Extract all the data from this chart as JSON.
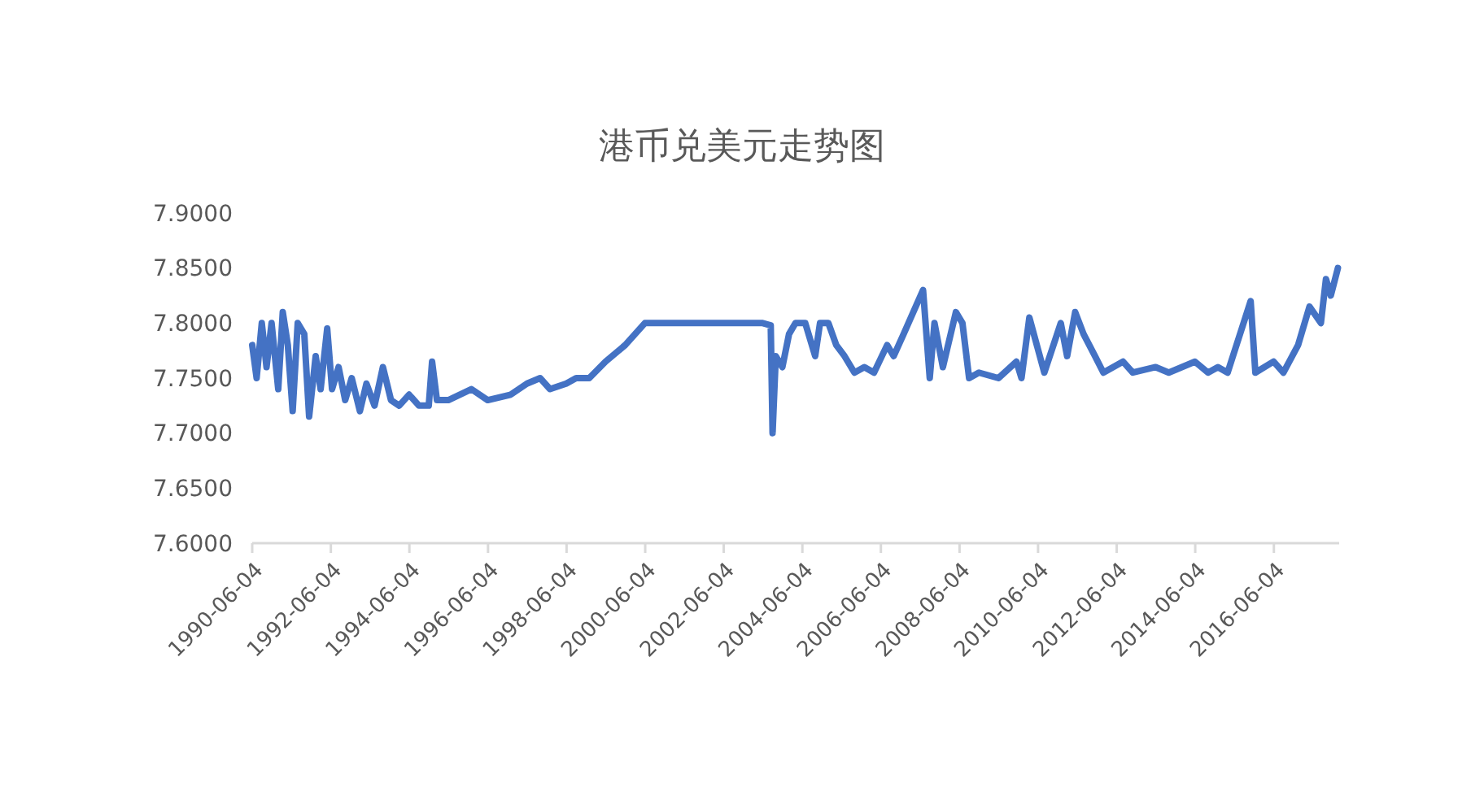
{
  "chart_data": {
    "type": "line",
    "title": "港币兑美元走势图",
    "x": [
      "1990-06-04",
      "1990-07-15",
      "1990-09-01",
      "1990-10-15",
      "1990-12-01",
      "1991-02-01",
      "1991-03-15",
      "1991-05-01",
      "1991-06-15",
      "1991-08-01",
      "1991-10-01",
      "1991-11-15",
      "1992-01-15",
      "1992-03-01",
      "1992-05-01",
      "1992-06-15",
      "1992-08-15",
      "1992-10-15",
      "1992-12-15",
      "1993-03-01",
      "1993-05-01",
      "1993-07-15",
      "1993-10-01",
      "1993-12-15",
      "1994-03-01",
      "1994-06-01",
      "1994-09-01",
      "1994-12-01",
      "1995-01-01",
      "1995-02-15",
      "1995-06-01",
      "1996-01-01",
      "1996-06-01",
      "1997-01-01",
      "1997-06-01",
      "1997-10-01",
      "1998-01-01",
      "1998-06-01",
      "1998-09-01",
      "1999-01-01",
      "1999-06-01",
      "1999-12-01",
      "2000-06-01",
      "2000-10-01",
      "2001-06-01",
      "2002-06-01",
      "2003-06-01",
      "2003-08-15",
      "2003-09-01",
      "2003-10-01",
      "2003-12-01",
      "2004-02-01",
      "2004-04-01",
      "2004-07-01",
      "2004-10-01",
      "2004-11-15",
      "2005-02-01",
      "2005-04-15",
      "2005-07-01",
      "2005-10-01",
      "2006-01-01",
      "2006-04-01",
      "2006-08-01",
      "2006-10-01",
      "2007-01-01",
      "2007-04-01",
      "2007-07-01",
      "2007-09-01",
      "2007-10-15",
      "2008-01-01",
      "2008-05-01",
      "2008-07-01",
      "2008-09-01",
      "2008-12-01",
      "2009-06-01",
      "2009-11-15",
      "2010-01-01",
      "2010-03-15",
      "2010-08-01",
      "2011-01-01",
      "2011-03-01",
      "2011-05-15",
      "2011-08-01",
      "2011-11-15",
      "2012-02-01",
      "2012-08-01",
      "2012-11-01",
      "2013-06-01",
      "2013-10-01",
      "2014-06-01",
      "2014-10-01",
      "2015-01-01",
      "2015-04-01",
      "2015-11-01",
      "2015-12-15",
      "2016-06-01",
      "2016-09-01",
      "2017-01-15",
      "2017-05-01",
      "2017-08-15",
      "2017-10-01",
      "2017-11-15",
      "2018-01-20"
    ],
    "values": [
      7.78,
      7.75,
      7.8,
      7.76,
      7.8,
      7.74,
      7.81,
      7.78,
      7.72,
      7.8,
      7.79,
      7.715,
      7.77,
      7.74,
      7.795,
      7.74,
      7.76,
      7.73,
      7.75,
      7.72,
      7.745,
      7.725,
      7.76,
      7.73,
      7.725,
      7.735,
      7.725,
      7.725,
      7.765,
      7.73,
      7.73,
      7.74,
      7.73,
      7.735,
      7.745,
      7.75,
      7.74,
      7.745,
      7.75,
      7.75,
      7.765,
      7.78,
      7.8,
      7.8,
      7.8,
      7.8,
      7.8,
      7.798,
      7.7,
      7.77,
      7.76,
      7.79,
      7.8,
      7.8,
      7.77,
      7.8,
      7.8,
      7.78,
      7.77,
      7.755,
      7.76,
      7.755,
      7.78,
      7.77,
      7.79,
      7.81,
      7.83,
      7.75,
      7.8,
      7.76,
      7.81,
      7.8,
      7.75,
      7.755,
      7.75,
      7.765,
      7.75,
      7.805,
      7.755,
      7.8,
      7.77,
      7.81,
      7.79,
      7.77,
      7.755,
      7.765,
      7.755,
      7.76,
      7.755,
      7.765,
      7.755,
      7.76,
      7.755,
      7.82,
      7.755,
      7.765,
      7.755,
      7.78,
      7.815,
      7.8,
      7.84,
      7.825,
      7.85
    ],
    "color": "#4472c4",
    "xlim": [
      "1990-06-04",
      "2018-02-01"
    ],
    "xticks": [
      "1990-06-04",
      "1992-06-04",
      "1994-06-04",
      "1996-06-04",
      "1998-06-04",
      "2000-06-04",
      "2002-06-04",
      "2004-06-04",
      "2006-06-04",
      "2008-06-04",
      "2010-06-04",
      "2012-06-04",
      "2014-06-04",
      "2016-06-04"
    ],
    "ylim": [
      7.6,
      7.9
    ],
    "yticks": [
      {
        "value": 7.6,
        "label": "7.6000"
      },
      {
        "value": 7.65,
        "label": "7.6500"
      },
      {
        "value": 7.7,
        "label": "7.7000"
      },
      {
        "value": 7.75,
        "label": "7.7500"
      },
      {
        "value": 7.8,
        "label": "7.8000"
      },
      {
        "value": 7.85,
        "label": "7.8500"
      },
      {
        "value": 7.9,
        "label": "7.9000"
      }
    ],
    "grid": false,
    "marker": "none",
    "line_style": "solid"
  }
}
